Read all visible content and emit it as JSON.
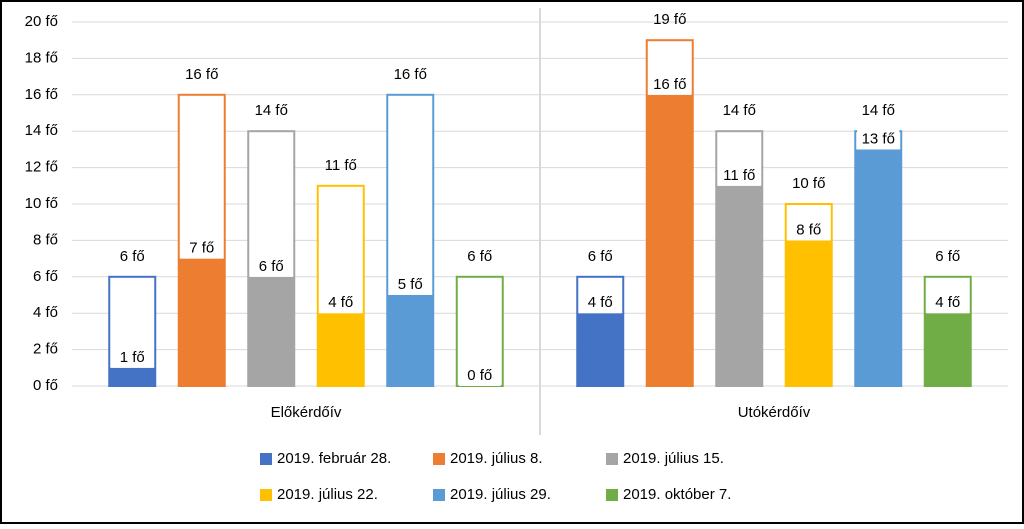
{
  "chart_data": {
    "type": "bar",
    "categories": [
      "Előkérdőív",
      "Utókérdőív"
    ],
    "series": [
      {
        "name": "2019. február 28.",
        "color": "#4472c4",
        "values": [
          1,
          4
        ],
        "value_labels": [
          "1 fő",
          "4 fő"
        ],
        "totals": [
          6,
          6
        ],
        "total_labels": [
          "6 fő",
          "6 fő"
        ]
      },
      {
        "name": "2019. július 8.",
        "color": "#ed7d31",
        "values": [
          7,
          16
        ],
        "value_labels": [
          "7 fő",
          "16 fő"
        ],
        "totals": [
          16,
          19
        ],
        "total_labels": [
          "16 fő",
          "19 fő"
        ]
      },
      {
        "name": "2019. július 15.",
        "color": "#a5a5a5",
        "values": [
          6,
          11
        ],
        "value_labels": [
          "6 fő",
          "11 fő"
        ],
        "totals": [
          14,
          14
        ],
        "total_labels": [
          "14 fő",
          "14 fő"
        ]
      },
      {
        "name": "2019. július 22.",
        "color": "#ffc000",
        "values": [
          4,
          8
        ],
        "value_labels": [
          "4 fő",
          "8 fő"
        ],
        "totals": [
          11,
          10
        ],
        "total_labels": [
          "11 fő",
          "10 fő"
        ]
      },
      {
        "name": "2019. július 29.",
        "color": "#5b9bd5",
        "values": [
          5,
          13
        ],
        "value_labels": [
          "5 fő",
          "13 fő"
        ],
        "totals": [
          16,
          14
        ],
        "total_labels": [
          "16 fő",
          "14 fő"
        ]
      },
      {
        "name": "2019. október 7.",
        "color": "#70ad47",
        "values": [
          0,
          4
        ],
        "value_labels": [
          "0 fő",
          "4 fő"
        ],
        "totals": [
          6,
          6
        ],
        "total_labels": [
          "6 fő",
          "6 fő"
        ]
      }
    ],
    "ylim": [
      0,
      20
    ],
    "yticks": [
      {
        "value": 0,
        "label": "0 fő"
      },
      {
        "value": 2,
        "label": "2 fő"
      },
      {
        "value": 4,
        "label": "4 fő"
      },
      {
        "value": 6,
        "label": "6 fő"
      },
      {
        "value": 8,
        "label": "8 fő"
      },
      {
        "value": 10,
        "label": "10 fő"
      },
      {
        "value": 12,
        "label": "12 fő"
      },
      {
        "value": 14,
        "label": "14 fő"
      },
      {
        "value": 16,
        "label": "16 fő"
      },
      {
        "value": 18,
        "label": "18 fő"
      },
      {
        "value": 20,
        "label": "20 fő"
      }
    ],
    "grid": true
  }
}
